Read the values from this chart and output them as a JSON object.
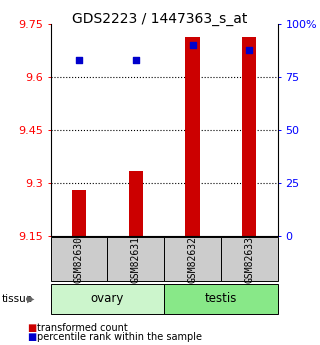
{
  "title": "GDS2223 / 1447363_s_at",
  "samples": [
    "GSM82630",
    "GSM82631",
    "GSM82632",
    "GSM82633"
  ],
  "transformed_counts": [
    9.28,
    9.335,
    9.715,
    9.715
  ],
  "percentile_ranks": [
    83,
    83,
    90,
    88
  ],
  "ylim_left": [
    9.15,
    9.75
  ],
  "ylim_right": [
    0,
    100
  ],
  "yticks_left": [
    9.15,
    9.3,
    9.45,
    9.6,
    9.75
  ],
  "yticks_right": [
    0,
    25,
    50,
    75,
    100
  ],
  "ytick_labels_right": [
    "0",
    "25",
    "50",
    "75",
    "100%"
  ],
  "groups": [
    {
      "name": "ovary",
      "samples": [
        0,
        1
      ],
      "color": "#ccf5cc"
    },
    {
      "name": "testis",
      "samples": [
        2,
        3
      ],
      "color": "#88e888"
    }
  ],
  "bar_color": "#cc0000",
  "square_color": "#0000cc",
  "bar_width": 0.25,
  "label_box_color": "#cccccc",
  "title_fontsize": 10,
  "tick_fontsize": 8,
  "sample_fontsize": 7,
  "legend_fontsize": 7,
  "tissue_fontsize": 8.5
}
